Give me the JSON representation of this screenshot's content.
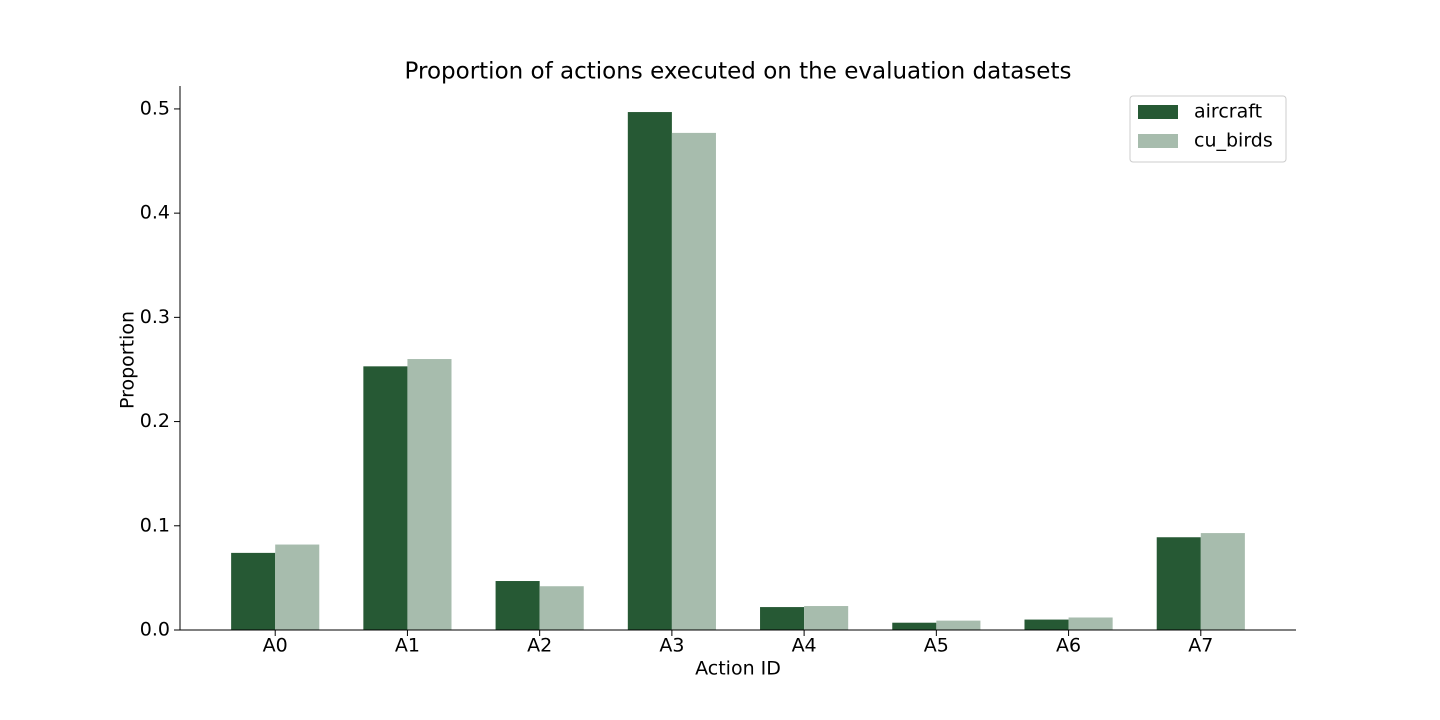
{
  "chart_data": {
    "type": "bar",
    "title": "Proportion of actions executed on the evaluation datasets",
    "x_label": "Action ID",
    "y_label": "Proportion",
    "categories": [
      "A0",
      "A1",
      "A2",
      "A3",
      "A4",
      "A5",
      "A6",
      "A7"
    ],
    "series": [
      {
        "name": "aircraft",
        "color": "#265934",
        "values": [
          0.074,
          0.253,
          0.047,
          0.497,
          0.022,
          0.007,
          0.01,
          0.089
        ]
      },
      {
        "name": "cu_birds",
        "color": "#a7bcad",
        "values": [
          0.082,
          0.26,
          0.042,
          0.477,
          0.023,
          0.009,
          0.012,
          0.093
        ]
      }
    ],
    "ylim": [
      0,
      0.522
    ],
    "yticks": [
      {
        "value": 0,
        "label": "0.0"
      },
      0.1,
      0.2,
      0.3,
      0.4,
      0.5
    ],
    "legend": "upper right"
  }
}
